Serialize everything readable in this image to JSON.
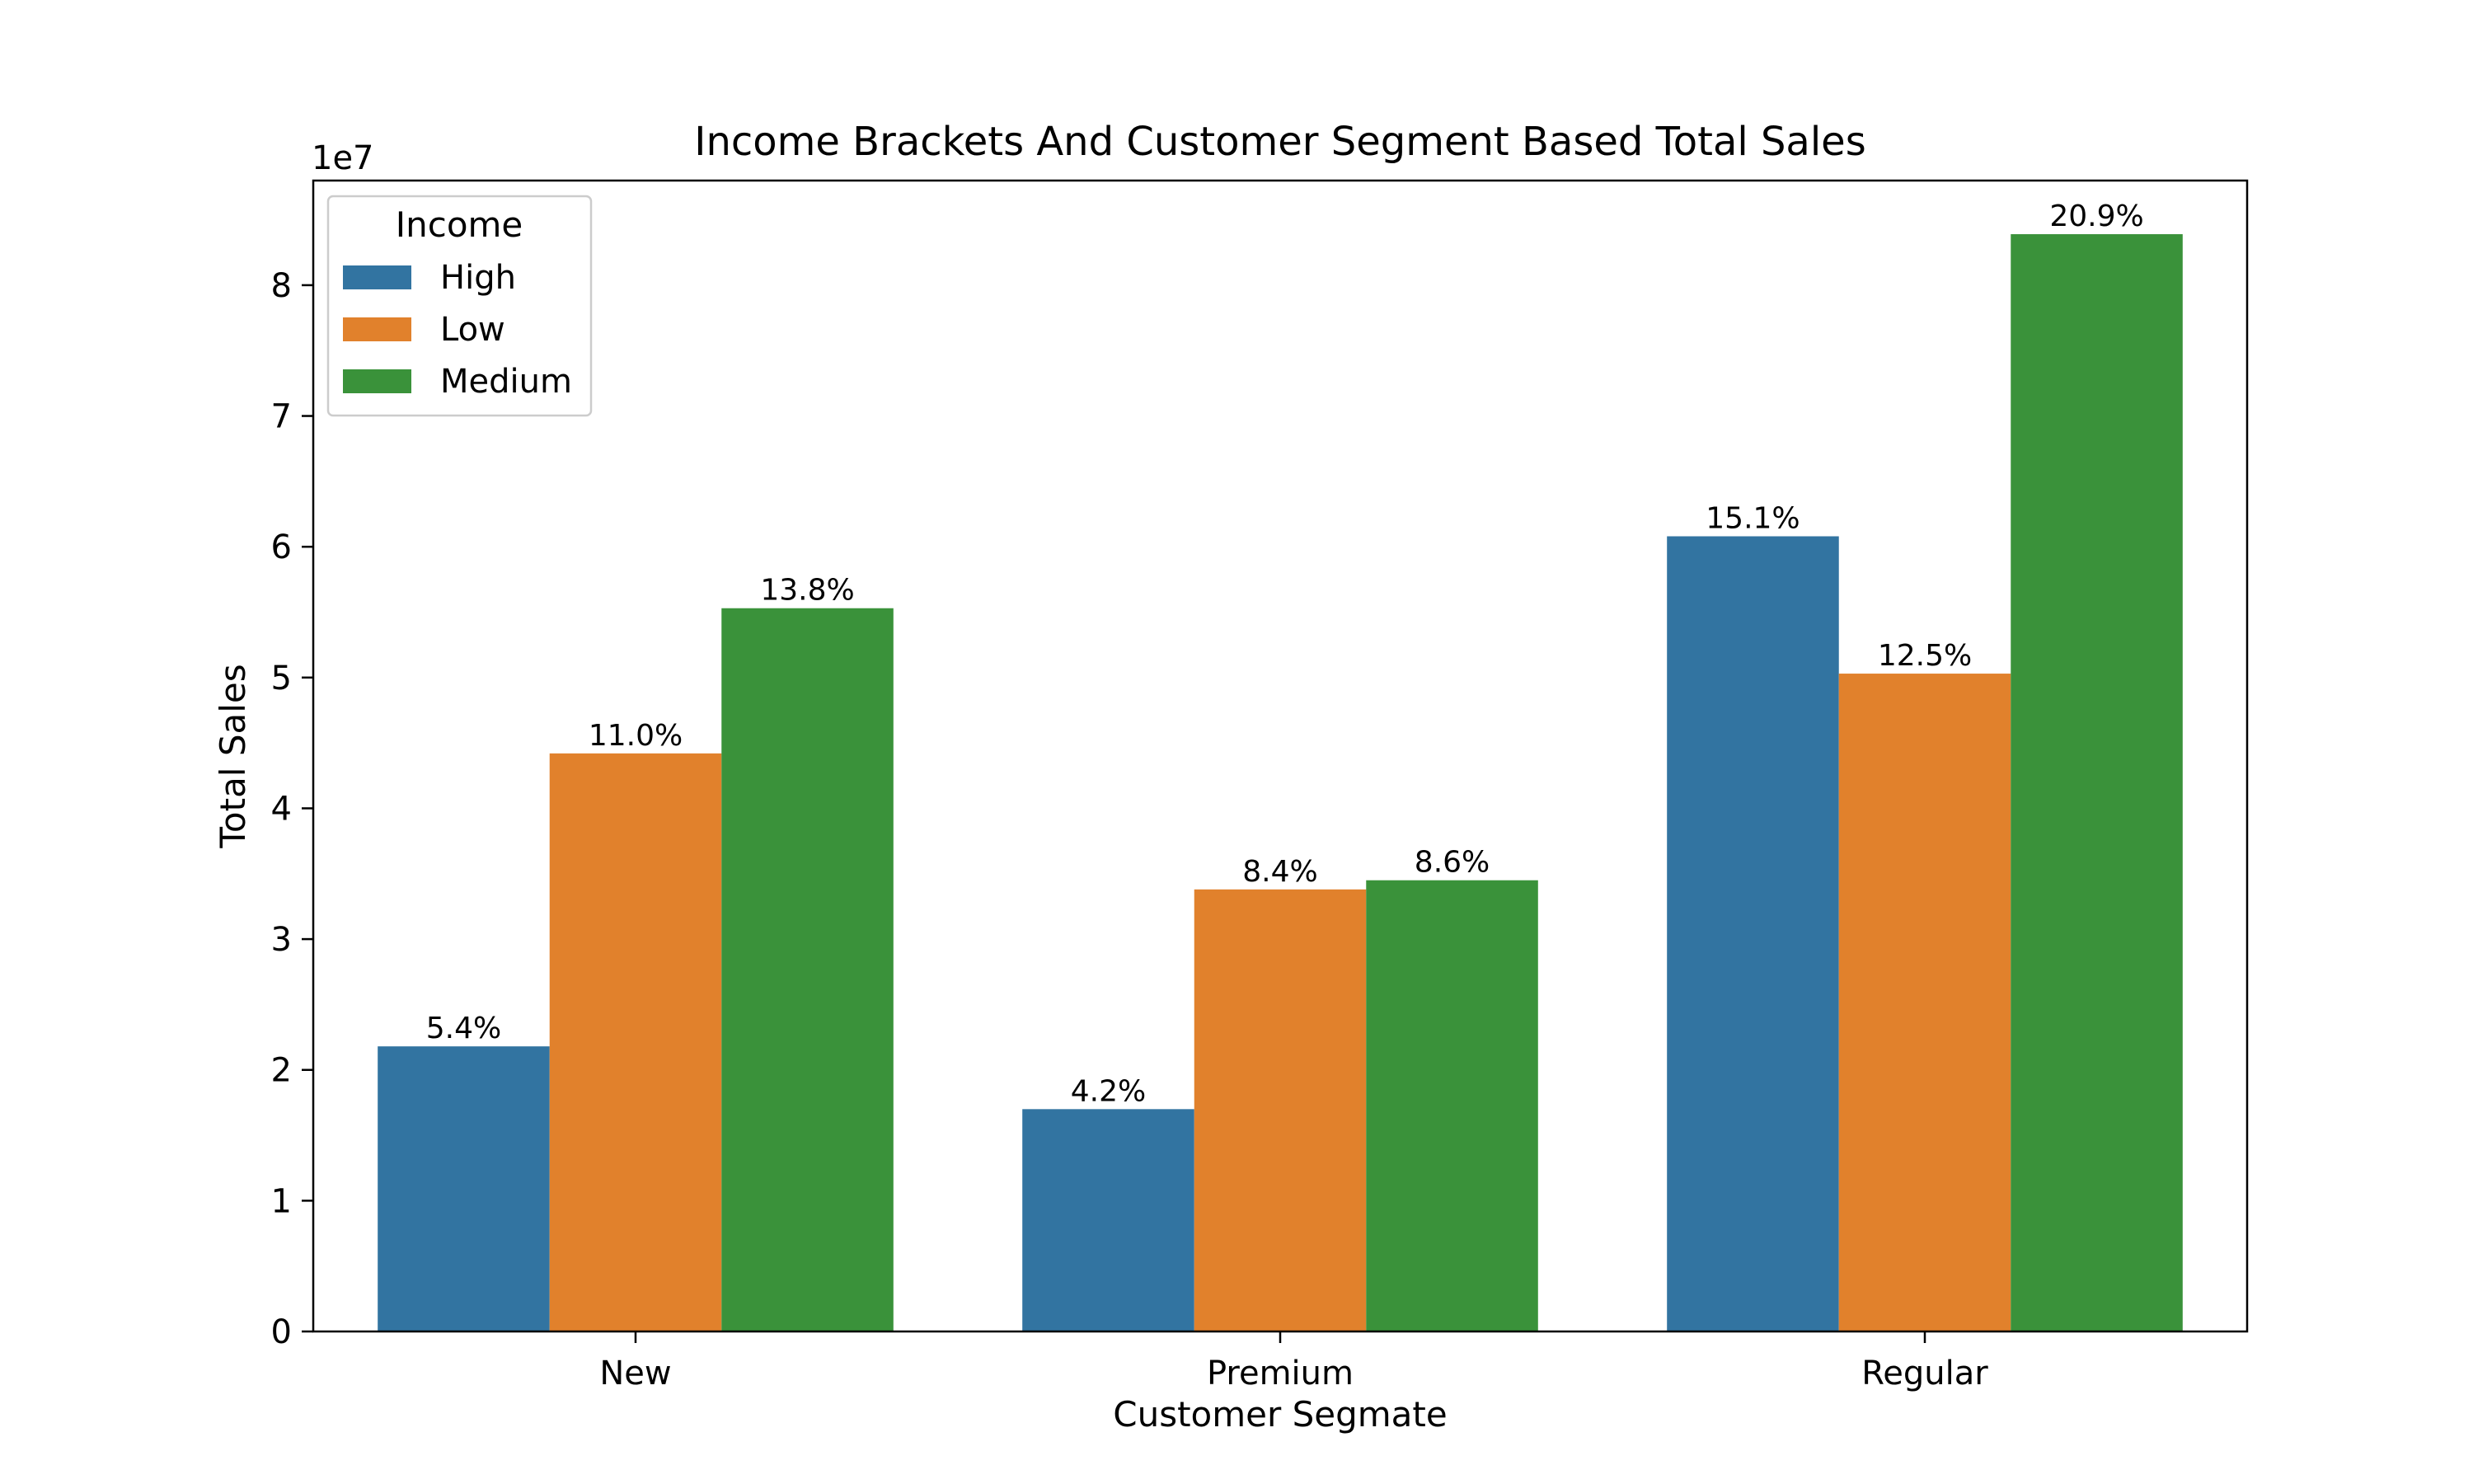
{
  "chart_data": {
    "type": "bar",
    "title": "Income Brackets And Customer Segment Based Total Sales",
    "xlabel": "Customer Segmate",
    "ylabel": "Total Sales",
    "y_offset_label": "1e7",
    "ylim": [
      0,
      88000000
    ],
    "yticks": [
      0,
      10000000,
      20000000,
      30000000,
      40000000,
      50000000,
      60000000,
      70000000,
      80000000
    ],
    "ytick_labels": [
      "0",
      "1",
      "2",
      "3",
      "4",
      "5",
      "6",
      "7",
      "8"
    ],
    "categories": [
      "New",
      "Premium",
      "Regular"
    ],
    "legend": {
      "title": "Income",
      "placement": "upper-left"
    },
    "grid": false,
    "series": [
      {
        "name": "High",
        "color": "#3274a1",
        "values": [
          21800000,
          17000000,
          60800000
        ],
        "labels": [
          "5.4%",
          "4.2%",
          "15.1%"
        ]
      },
      {
        "name": "Low",
        "color": "#e1812c",
        "values": [
          44200000,
          33800000,
          50300000
        ],
        "labels": [
          "11.0%",
          "8.4%",
          "12.5%"
        ]
      },
      {
        "name": "Medium",
        "color": "#3a923a",
        "values": [
          55300000,
          34500000,
          83900000
        ],
        "labels": [
          "13.8%",
          "8.6%",
          "20.9%"
        ]
      }
    ]
  }
}
